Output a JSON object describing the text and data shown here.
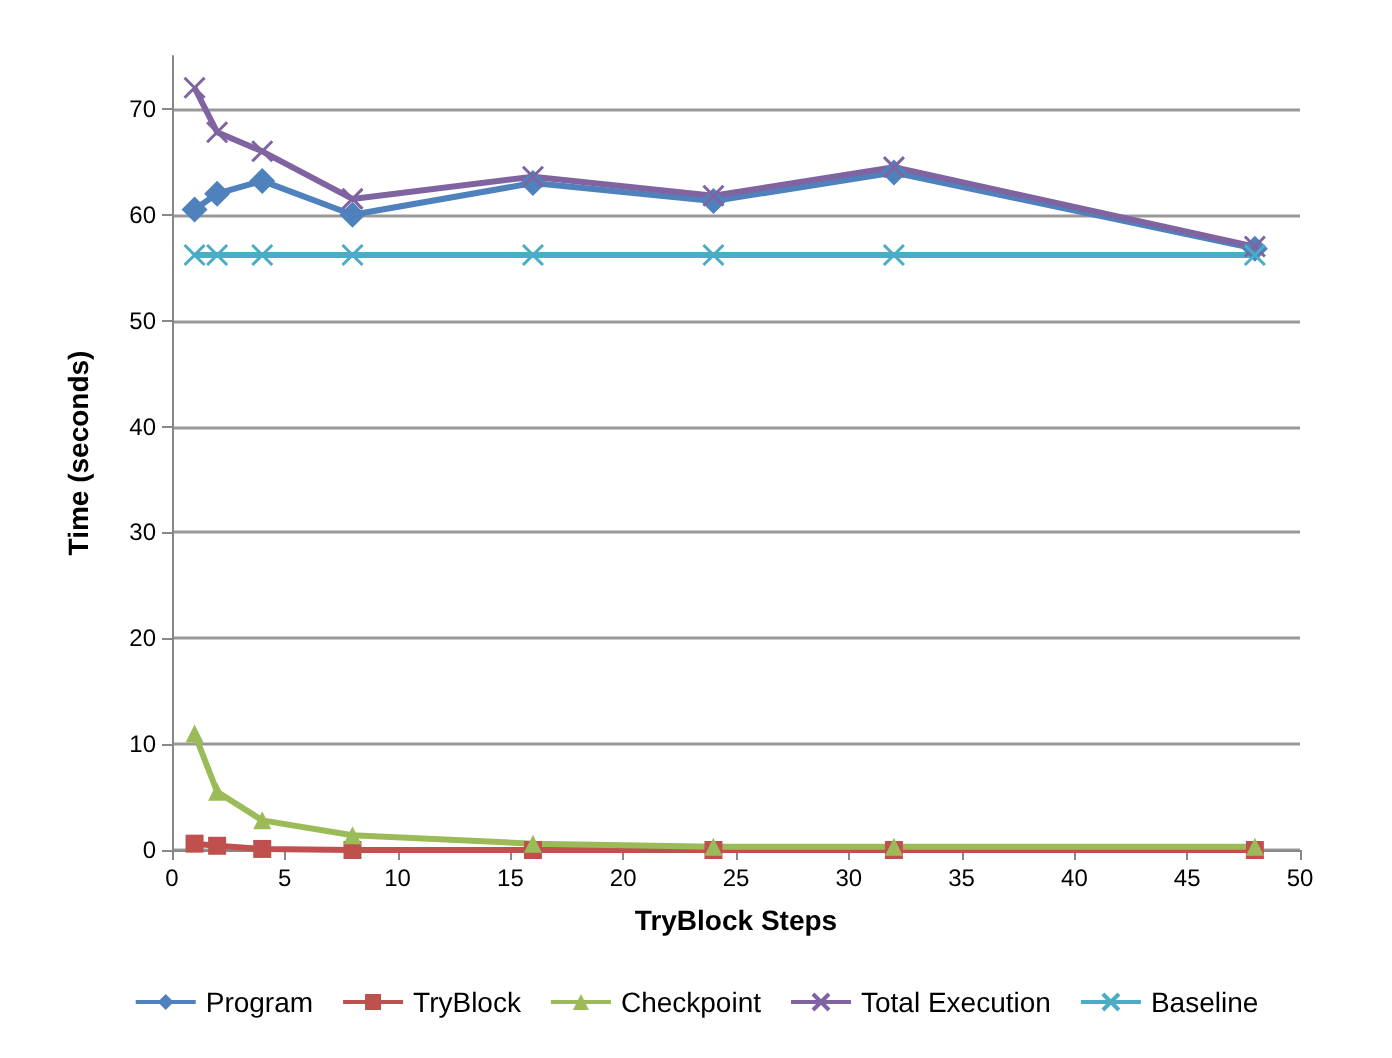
{
  "chart_data": {
    "type": "line",
    "xlabel": "TryBlock Steps",
    "ylabel": "Time (seconds)",
    "x": [
      1,
      2,
      4,
      8,
      16,
      24,
      32,
      48
    ],
    "series": [
      {
        "name": "Program",
        "color": "#4f81bd",
        "marker": "diamond",
        "values": [
          60.5,
          62,
          63.2,
          60,
          63,
          61.3,
          64,
          56.8
        ]
      },
      {
        "name": "TryBlock",
        "color": "#c0504d",
        "marker": "square",
        "values": [
          0.6,
          0.4,
          0.1,
          0,
          0,
          0,
          0,
          0
        ]
      },
      {
        "name": "Checkpoint",
        "color": "#9bbb59",
        "marker": "triangle",
        "values": [
          11,
          5.5,
          2.8,
          1.4,
          0.6,
          0.3,
          0.3,
          0.3
        ]
      },
      {
        "name": "Total Execution",
        "color": "#8064a2",
        "marker": "cross",
        "values": [
          72,
          67.8,
          66,
          61.5,
          63.6,
          61.8,
          64.5,
          57
        ]
      },
      {
        "name": "Baseline",
        "color": "#4bacc6",
        "marker": "cross",
        "values": [
          56.2,
          56.2,
          56.2,
          56.2,
          56.2,
          56.2,
          56.2,
          56.2
        ]
      }
    ],
    "xlim": [
      0,
      50
    ],
    "xticks": [
      0,
      5,
      10,
      15,
      20,
      25,
      30,
      35,
      40,
      45,
      50
    ],
    "ylim": [
      0,
      75
    ],
    "yticks": [
      0,
      10,
      20,
      30,
      40,
      50,
      60,
      70
    ],
    "grid": "y",
    "legend": "bottom",
    "line_style": "solid"
  }
}
